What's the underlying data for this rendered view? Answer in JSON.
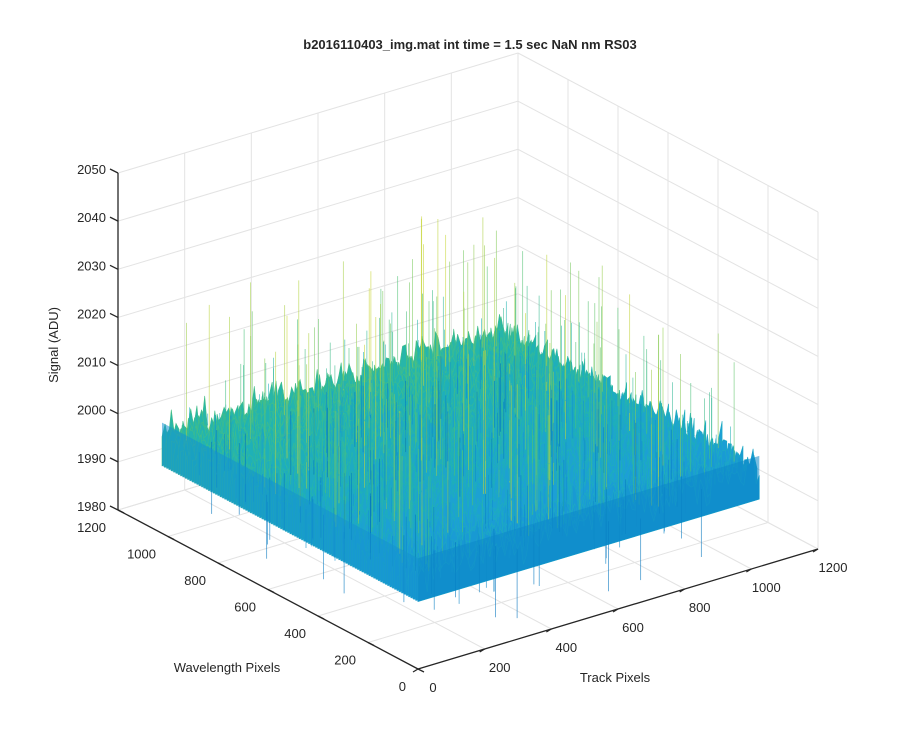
{
  "chart_data": {
    "type": "surface",
    "title": "b2016110403_img.mat int time = 1.5 sec  NaN nm RS03",
    "xlabel": "Track Pixels",
    "ylabel": "Wavelength Pixels",
    "zlabel": "Signal (ADU)",
    "xlim": [
      0,
      1200
    ],
    "ylim": [
      0,
      1200
    ],
    "zlim": [
      1980,
      2050
    ],
    "x_ticks": [
      "0",
      "200",
      "400",
      "600",
      "800",
      "1000",
      "1200"
    ],
    "y_ticks": [
      "0",
      "200",
      "400",
      "600",
      "800",
      "1000",
      "1200"
    ],
    "z_ticks": [
      "1980",
      "1990",
      "2000",
      "2010",
      "2020",
      "2030",
      "2040",
      "2050"
    ],
    "x_extent": [
      0,
      1024
    ],
    "y_extent": [
      0,
      1024
    ],
    "signal_mean": 2000,
    "signal_range": [
      1985,
      2030
    ],
    "colormap": [
      "#0072bd",
      "#1c9fd6",
      "#1fb3b3",
      "#4ec27a",
      "#c9d63a"
    ],
    "grid": true,
    "view": "3d-isometric"
  }
}
